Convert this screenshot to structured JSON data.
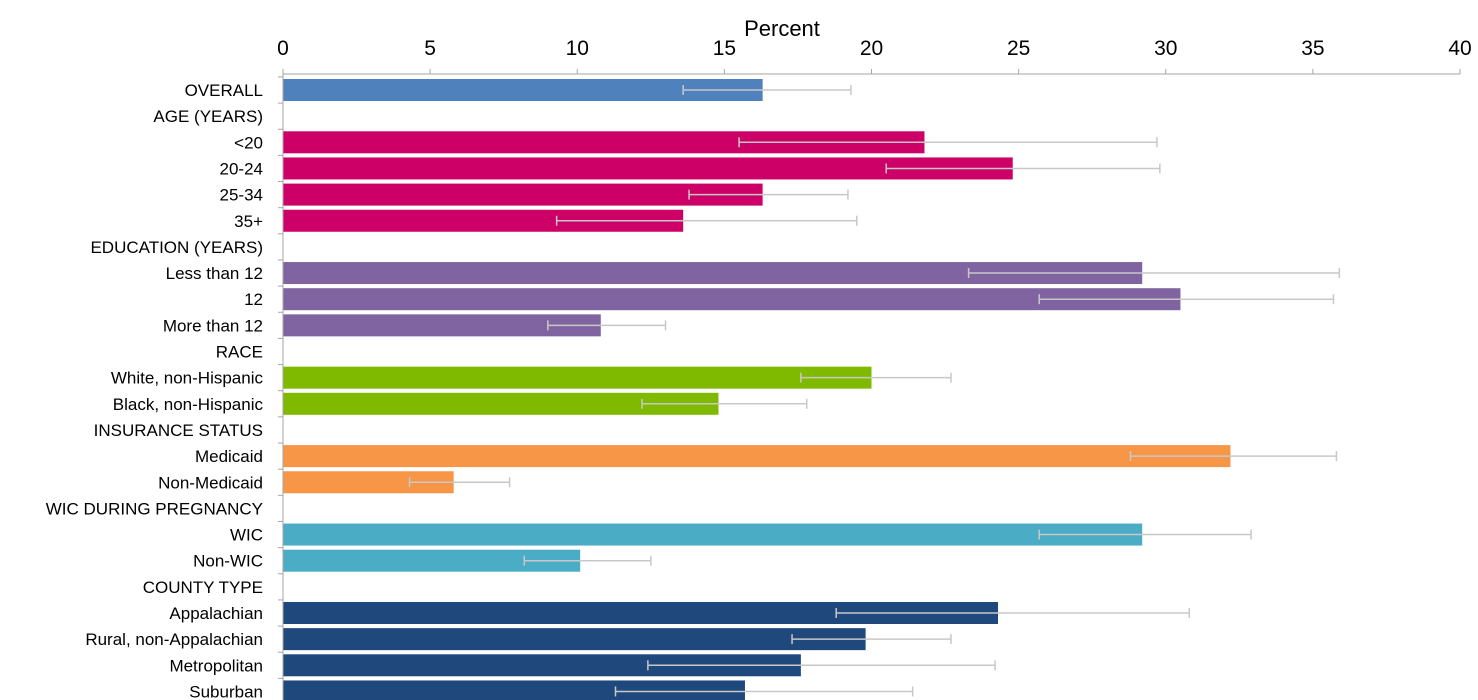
{
  "chart_data": {
    "type": "bar",
    "orientation": "horizontal",
    "xlabel": "Percent",
    "xlim": [
      0,
      40
    ],
    "ticks": [
      0,
      5,
      10,
      15,
      20,
      25,
      30,
      35,
      40
    ],
    "grid": false,
    "error_bars": true,
    "colors": {
      "overall": "#4F81BD",
      "age": "#CC0066",
      "education": "#8064A2",
      "race": "#7FBA00",
      "insurance": "#F79646",
      "wic": "#4BACC6",
      "county": "#1F497D",
      "errorbar": "#C8C8C8",
      "axis": "#A6A6A6"
    },
    "rows": [
      {
        "label": "OVERALL",
        "value": 16.3,
        "low": 13.6,
        "high": 19.3,
        "group": "overall"
      },
      {
        "label": "AGE (YEARS)",
        "header": true
      },
      {
        "label": "<20",
        "value": 21.8,
        "low": 15.5,
        "high": 29.7,
        "group": "age"
      },
      {
        "label": "20-24",
        "value": 24.8,
        "low": 20.5,
        "high": 29.8,
        "group": "age"
      },
      {
        "label": "25-34",
        "value": 16.3,
        "low": 13.8,
        "high": 19.2,
        "group": "age"
      },
      {
        "label": "35+",
        "value": 13.6,
        "low": 9.3,
        "high": 19.5,
        "group": "age"
      },
      {
        "label": "EDUCATION (YEARS)",
        "header": true
      },
      {
        "label": "Less than 12",
        "value": 29.2,
        "low": 23.3,
        "high": 35.9,
        "group": "education"
      },
      {
        "label": "12",
        "value": 30.5,
        "low": 25.7,
        "high": 35.7,
        "group": "education"
      },
      {
        "label": "More than 12",
        "value": 10.8,
        "low": 9.0,
        "high": 13.0,
        "group": "education"
      },
      {
        "label": "RACE",
        "header": true
      },
      {
        "label": "White, non-Hispanic",
        "value": 20.0,
        "low": 17.6,
        "high": 22.7,
        "group": "race"
      },
      {
        "label": "Black, non-Hispanic",
        "value": 14.8,
        "low": 12.2,
        "high": 17.8,
        "group": "race"
      },
      {
        "label": "INSURANCE STATUS",
        "header": true
      },
      {
        "label": "Medicaid",
        "value": 32.2,
        "low": 28.8,
        "high": 35.8,
        "group": "insurance"
      },
      {
        "label": "Non-Medicaid",
        "value": 5.8,
        "low": 4.3,
        "high": 7.7,
        "group": "insurance"
      },
      {
        "label": "WIC DURING PREGNANCY",
        "header": true
      },
      {
        "label": "WIC",
        "value": 29.2,
        "low": 25.7,
        "high": 32.9,
        "group": "wic"
      },
      {
        "label": "Non-WIC",
        "value": 10.1,
        "low": 8.2,
        "high": 12.5,
        "group": "wic"
      },
      {
        "label": "COUNTY TYPE",
        "header": true
      },
      {
        "label": "Appalachian",
        "value": 24.3,
        "low": 18.8,
        "high": 30.8,
        "group": "county"
      },
      {
        "label": "Rural, non-Appalachian",
        "value": 19.8,
        "low": 17.3,
        "high": 22.7,
        "group": "county"
      },
      {
        "label": "Metropolitan",
        "value": 17.6,
        "low": 12.4,
        "high": 24.2,
        "group": "county"
      },
      {
        "label": "Suburban",
        "value": 15.7,
        "low": 11.3,
        "high": 21.4,
        "group": "county"
      }
    ]
  }
}
